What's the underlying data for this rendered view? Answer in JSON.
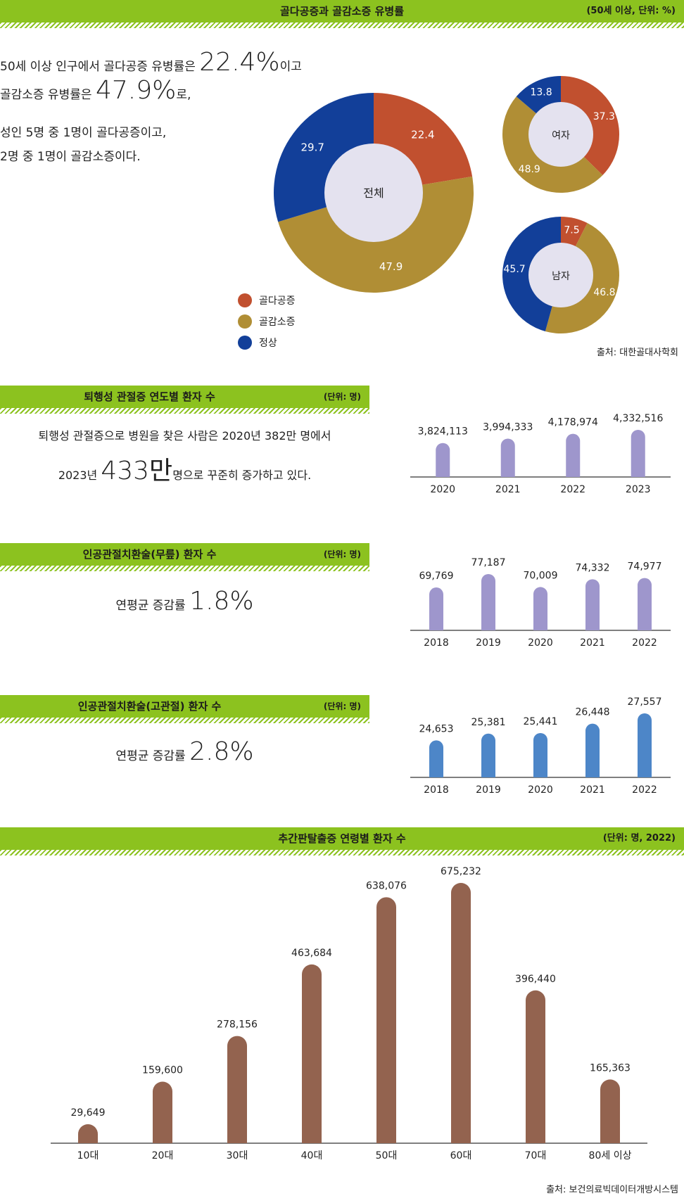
{
  "section1": {
    "title": "골다공증과 골감소증 유병률",
    "unit": "(50세 이상, 단위: %)",
    "text1_pre": "50세 이상 인구에서 골다공증 유병률은 ",
    "text1_big": "22.4%",
    "text1_post": "이고",
    "text2_pre": "골감소증 유병률은 ",
    "text2_big": "47.9%",
    "text2_post": "로,",
    "text3": "성인 5명 중 1명이 골다공증이고,",
    "text4": "2명 중 1명이 골감소증이다.",
    "source": "출처: 대한골대사학회",
    "legend": [
      {
        "label": "골다공증",
        "color": "#c1502f"
      },
      {
        "label": "골감소증",
        "color": "#b08e35"
      },
      {
        "label": "정상",
        "color": "#123f99"
      }
    ]
  },
  "section2": {
    "title": "퇴행성 관절증 연도별 환자 수",
    "unit": "(단위: 명)",
    "line1": "퇴행성 관절증으로 병원을 찾은 사람은 2020년 382만 명에서",
    "line2_pre": "2023년 ",
    "line2_big": "433만",
    "line2_post": "명으로 꾸준히 증가하고 있다."
  },
  "section3": {
    "title": "인공관절치환술(무릎) 환자 수",
    "unit": "(단위: 명)",
    "label": "연평균 증감률 ",
    "rate": "1.8%"
  },
  "section4": {
    "title": "인공관절치환술(고관절) 환자 수",
    "unit": "(단위: 명)",
    "label": "연평균 증감률 ",
    "rate": "2.8%"
  },
  "section5": {
    "title": "추간판탈출증 연령별 환자 수",
    "unit": "(단위: 명, 2022)",
    "source": "출처: 보건의료빅데이터개방시스템"
  },
  "chart_data": [
    {
      "type": "pie",
      "title": "전체",
      "categories": [
        "골다공증",
        "골감소증",
        "정상"
      ],
      "values": [
        22.4,
        47.9,
        29.7
      ],
      "colors": [
        "#c1502f",
        "#b08e35",
        "#123f99"
      ]
    },
    {
      "type": "pie",
      "title": "여자",
      "categories": [
        "골다공증",
        "골감소증",
        "정상"
      ],
      "values": [
        37.3,
        48.9,
        13.8
      ],
      "colors": [
        "#c1502f",
        "#b08e35",
        "#123f99"
      ]
    },
    {
      "type": "pie",
      "title": "남자",
      "categories": [
        "골다공증",
        "골감소증",
        "정상"
      ],
      "values": [
        7.5,
        46.8,
        45.7
      ],
      "colors": [
        "#c1502f",
        "#b08e35",
        "#123f99"
      ]
    },
    {
      "type": "bar",
      "title": "퇴행성 관절증 연도별 환자 수",
      "categories": [
        "2020",
        "2021",
        "2022",
        "2023"
      ],
      "values": [
        3824113,
        3994333,
        4178974,
        4332516
      ],
      "labels": [
        "3,824,113",
        "3,994,333",
        "4,178,974",
        "4,332,516"
      ],
      "color": "#9e96cc"
    },
    {
      "type": "bar",
      "title": "인공관절치환술(무릎) 환자 수",
      "categories": [
        "2018",
        "2019",
        "2020",
        "2021",
        "2022"
      ],
      "values": [
        69769,
        77187,
        70009,
        74332,
        74977
      ],
      "labels": [
        "69,769",
        "77,187",
        "70,009",
        "74,332",
        "74,977"
      ],
      "color": "#9e96cc"
    },
    {
      "type": "bar",
      "title": "인공관절치환술(고관절) 환자 수",
      "categories": [
        "2018",
        "2019",
        "2020",
        "2021",
        "2022"
      ],
      "values": [
        24653,
        25381,
        25441,
        26448,
        27557
      ],
      "labels": [
        "24,653",
        "25,381",
        "25,441",
        "26,448",
        "27,557"
      ],
      "color": "#4d86c8"
    },
    {
      "type": "bar",
      "title": "추간판탈출증 연령별 환자 수",
      "categories": [
        "10대",
        "20대",
        "30대",
        "40대",
        "50대",
        "60대",
        "70대",
        "80세 이상"
      ],
      "values": [
        29649,
        159600,
        278156,
        463684,
        638076,
        675232,
        396440,
        165363
      ],
      "labels": [
        "29,649",
        "159,600",
        "278,156",
        "463,684",
        "638,076",
        "675,232",
        "396,440",
        "165,363"
      ],
      "color": "#93634f"
    }
  ]
}
